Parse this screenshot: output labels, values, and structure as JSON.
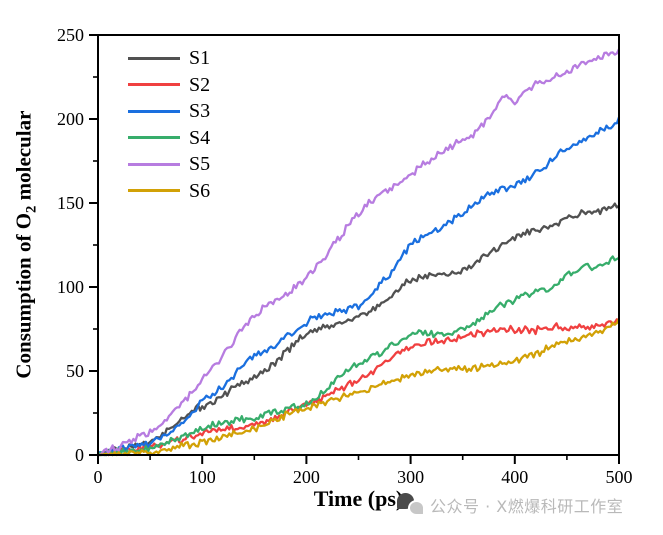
{
  "watermark": {
    "text": "公众号 · X燃爆科研工作室"
  },
  "chart_data": {
    "type": "line",
    "title": "",
    "xlabel": "Time (ps)",
    "ylabel": "Consumption of O2 molecular",
    "ylabel_parts": {
      "prefix": "Consumption of O",
      "sub": "2",
      "suffix": " molecular"
    },
    "xlim": [
      0,
      500
    ],
    "ylim": [
      0,
      250
    ],
    "x_step": 10,
    "x_major_ticks": [
      0,
      100,
      200,
      300,
      400,
      500
    ],
    "x_minor_ticks": [
      50,
      150,
      250,
      350,
      450
    ],
    "y_major_ticks": [
      0,
      50,
      100,
      150,
      200,
      250
    ],
    "y_minor_ticks": [
      25,
      75,
      125,
      175,
      225
    ],
    "grid": false,
    "legend_position": "top-left-inside",
    "series": [
      {
        "name": "S1",
        "color": "#515151",
        "values": [
          0,
          1,
          3,
          5,
          6,
          8,
          12,
          17,
          22,
          26,
          29,
          32,
          36,
          40,
          43,
          46,
          50,
          55,
          61,
          67,
          72,
          74,
          76,
          78,
          80,
          82,
          85,
          89,
          94,
          99,
          104,
          106,
          107,
          107,
          108,
          110,
          113,
          117,
          122,
          126,
          130,
          132,
          134,
          135,
          138,
          141,
          143,
          144,
          145,
          146,
          148
        ]
      },
      {
        "name": "S2",
        "color": "#F04040",
        "values": [
          0,
          1,
          2,
          3,
          4,
          5,
          6,
          8,
          9,
          11,
          13,
          14,
          15,
          16,
          17,
          18,
          20,
          22,
          25,
          28,
          30,
          33,
          35,
          39,
          42,
          44,
          48,
          53,
          57,
          61,
          64,
          66,
          67,
          68,
          69,
          70,
          72,
          73,
          74,
          75,
          74,
          75,
          74,
          75,
          76,
          75,
          76,
          76,
          77,
          78,
          79
        ]
      },
      {
        "name": "S3",
        "color": "#1A6FDF",
        "values": [
          0,
          1,
          3,
          5,
          6,
          7,
          10,
          14,
          19,
          25,
          32,
          36,
          41,
          47,
          54,
          60,
          62,
          65,
          70,
          75,
          79,
          82,
          84,
          85,
          87,
          89,
          94,
          100,
          108,
          117,
          125,
          129,
          132,
          136,
          140,
          143,
          148,
          153,
          157,
          159,
          161,
          164,
          168,
          172,
          178,
          183,
          186,
          189,
          192,
          196,
          200
        ]
      },
      {
        "name": "S4",
        "color": "#37AD6B",
        "values": [
          0,
          1,
          2,
          3,
          3,
          4,
          6,
          8,
          10,
          13,
          16,
          18,
          19,
          20,
          21,
          22,
          24,
          26,
          27,
          29,
          30,
          34,
          39,
          45,
          50,
          55,
          58,
          60,
          64,
          68,
          72,
          73,
          72,
          71,
          73,
          75,
          78,
          82,
          86,
          90,
          93,
          96,
          97,
          98,
          102,
          107,
          110,
          112,
          112,
          115,
          119
        ]
      },
      {
        "name": "S5",
        "color": "#B77CE0",
        "values": [
          0,
          2,
          5,
          8,
          11,
          13,
          19,
          25,
          30,
          37,
          45,
          52,
          60,
          68,
          76,
          83,
          88,
          92,
          96,
          100,
          106,
          113,
          120,
          128,
          136,
          144,
          150,
          155,
          158,
          162,
          167,
          172,
          176,
          180,
          184,
          187,
          191,
          197,
          205,
          214,
          211,
          217,
          221,
          223,
          226,
          228,
          231,
          234,
          236,
          239,
          241
        ]
      },
      {
        "name": "S6",
        "color": "#D2A106",
        "values": [
          0,
          0,
          1,
          1,
          2,
          2,
          3,
          4,
          5,
          6,
          8,
          9,
          10,
          12,
          14,
          16,
          18,
          21,
          24,
          26,
          28,
          30,
          32,
          34,
          36,
          37,
          39,
          42,
          44,
          46,
          48,
          49,
          50,
          50,
          51,
          51,
          52,
          53,
          54,
          55,
          56,
          58,
          60,
          63,
          66,
          68,
          69,
          71,
          73,
          76,
          80
        ]
      }
    ]
  }
}
